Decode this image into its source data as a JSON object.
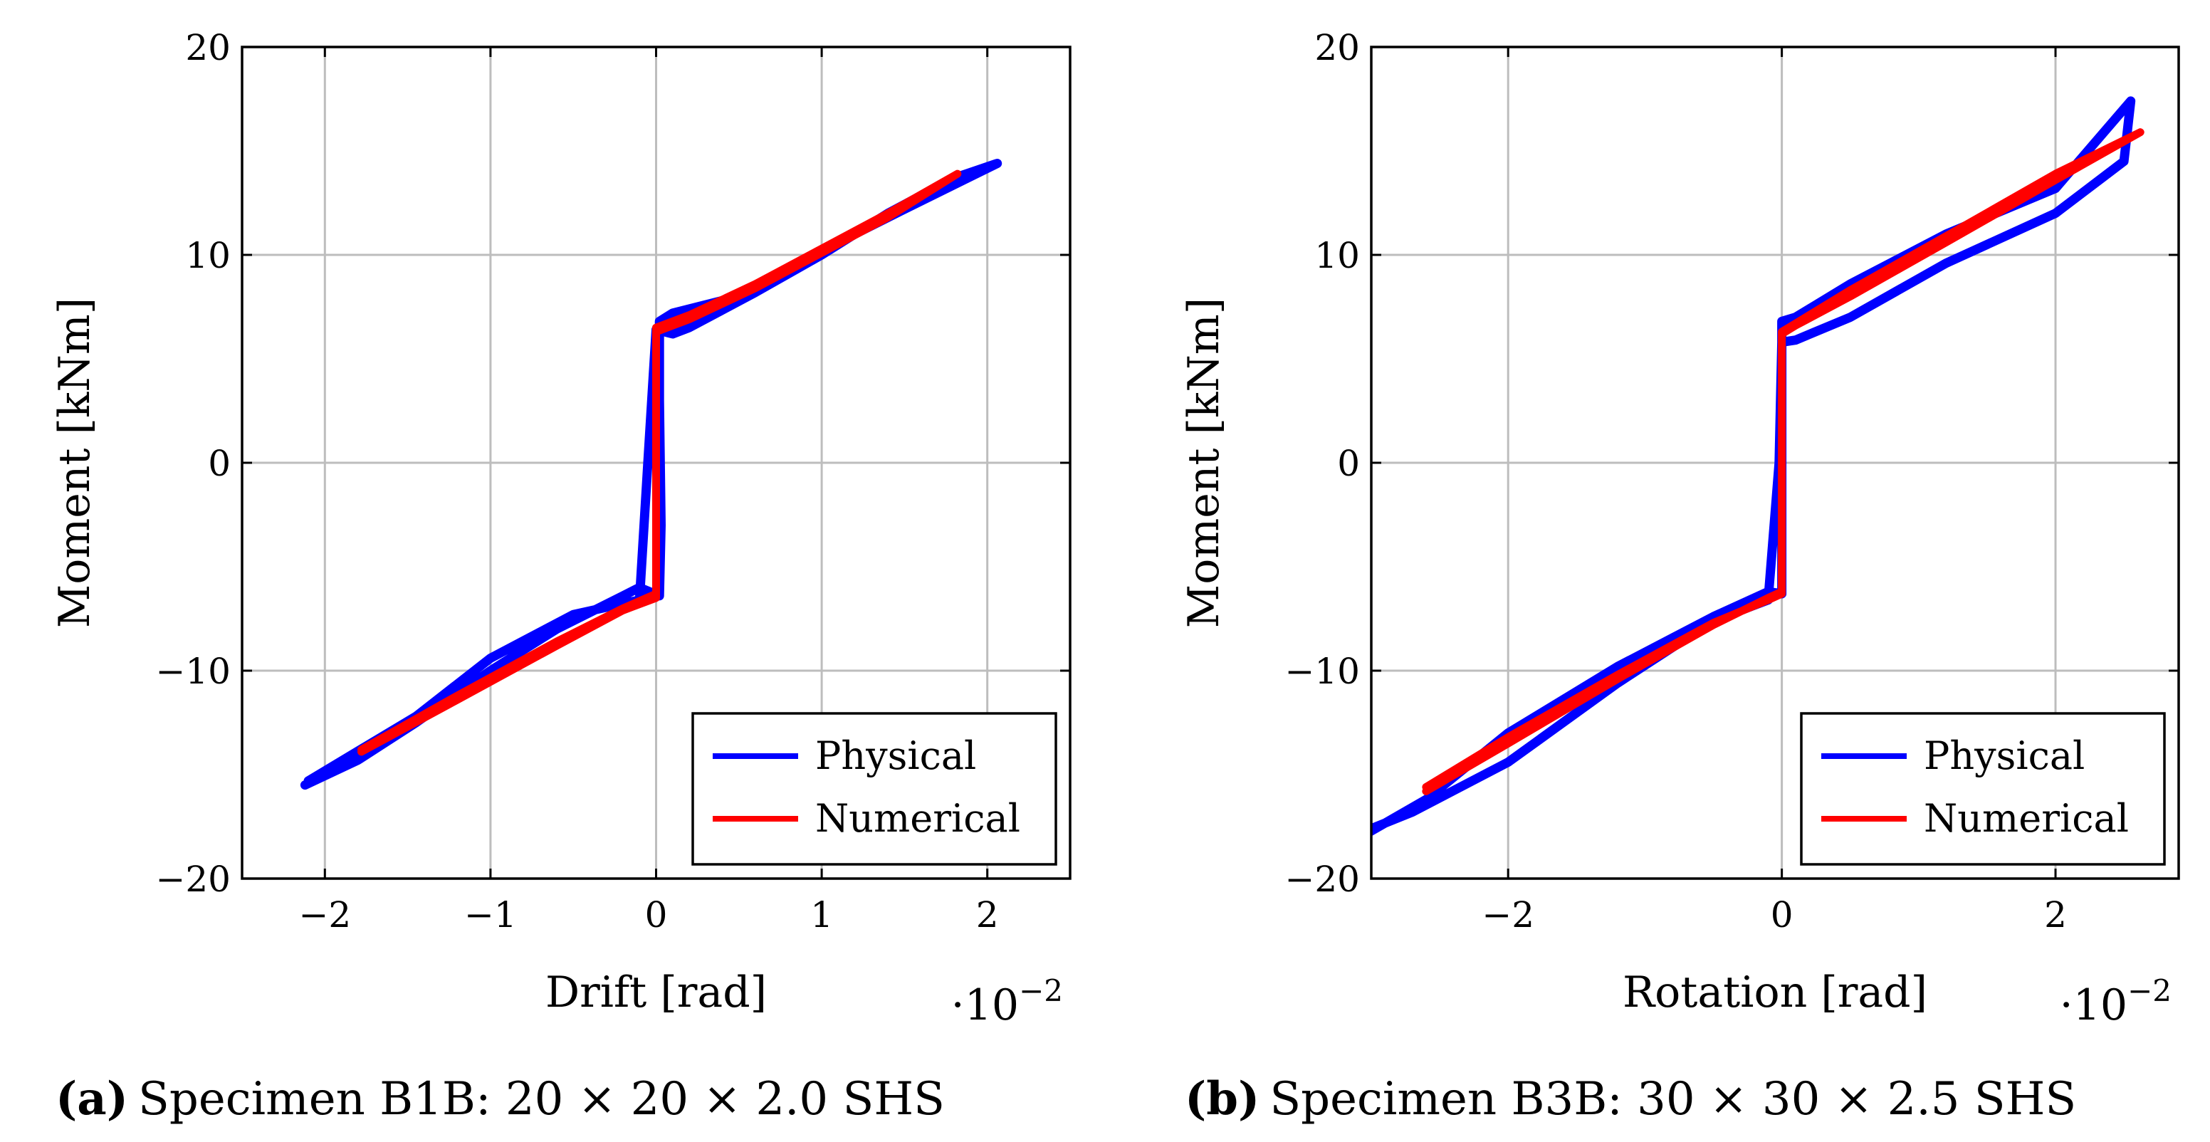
{
  "chart_data": [
    {
      "type": "line",
      "caption_prefix": "(a)",
      "caption": "Specimen B1B: 20 × 20 × 2.0 SHS",
      "xlabel": "Drift [rad]",
      "ylabel": "Moment [kNm]",
      "x_multiplier": "·10",
      "x_multiplier_exp": "−2",
      "xlim": [
        -2.5,
        2.5
      ],
      "ylim": [
        -20,
        20
      ],
      "xticks": [
        -2,
        -1,
        0,
        1,
        2
      ],
      "xtick_labels": [
        "−2",
        "−1",
        "0",
        "1",
        "2"
      ],
      "yticks": [
        -20,
        -10,
        0,
        10,
        20
      ],
      "ytick_labels": [
        "−20",
        "−10",
        "0",
        "10",
        "20"
      ],
      "grid": true,
      "legend": "bottom-right",
      "series": [
        {
          "name": "Physical",
          "color": "#0000ff",
          "x": [
            -2.12,
            -1.8,
            -1.45,
            -1.0,
            -0.6,
            -0.2,
            -0.1,
            0.02,
            0.03,
            0.02,
            0.02,
            0.1,
            0.5,
            1.0,
            1.5,
            2.06,
            1.8,
            1.4,
            1.0,
            0.6,
            0.2,
            0.1,
            0.0,
            -0.05,
            -0.1,
            -0.5,
            -1.0,
            -1.45,
            -2.1
          ],
          "y": [
            -15.5,
            -14.3,
            -12.5,
            -10.0,
            -8.0,
            -6.4,
            -6.0,
            -6.4,
            -3.0,
            3.0,
            6.8,
            7.2,
            8.0,
            10.2,
            12.2,
            14.4,
            13.7,
            12.0,
            10.0,
            8.2,
            6.5,
            6.2,
            6.4,
            0.0,
            -6.6,
            -7.3,
            -9.4,
            -12.2,
            -15.3
          ]
        },
        {
          "name": "Numerical",
          "color": "#ff0000",
          "x": [
            -1.78,
            -1.2,
            -0.6,
            -0.2,
            0.0,
            0.0,
            0.2,
            0.6,
            1.0,
            1.4,
            1.82,
            1.4,
            1.0,
            0.6,
            0.2,
            0.0,
            0.0,
            -0.2,
            -0.6,
            -1.2,
            -1.78
          ],
          "y": [
            -13.8,
            -11.2,
            -8.6,
            -7.0,
            -6.3,
            6.3,
            6.9,
            8.4,
            10.1,
            11.8,
            13.9,
            12.0,
            10.3,
            8.6,
            7.1,
            6.5,
            -6.5,
            -7.1,
            -8.8,
            -11.4,
            -13.9
          ]
        }
      ]
    },
    {
      "type": "line",
      "caption_prefix": "(b)",
      "caption": "Specimen B3B: 30 × 30 × 2.5 SHS",
      "xlabel": "Rotation [rad]",
      "ylabel": "Moment [kNm]",
      "x_multiplier": "·10",
      "x_multiplier_exp": "−2",
      "xlim": [
        -3,
        2.9
      ],
      "ylim": [
        -20,
        20
      ],
      "xticks": [
        -2,
        0,
        2
      ],
      "xtick_labels": [
        "−2",
        "0",
        "2"
      ],
      "yticks": [
        -20,
        -10,
        0,
        10,
        20
      ],
      "ytick_labels": [
        "−20",
        "−10",
        "0",
        "10",
        "20"
      ],
      "grid": true,
      "legend": "bottom-right",
      "series": [
        {
          "name": "Physical",
          "color": "#0000ff",
          "x": [
            -3.05,
            -2.6,
            -2.0,
            -1.2,
            -0.5,
            -0.1,
            0.0,
            0.0,
            0.0,
            0.0,
            0.1,
            0.5,
            1.2,
            2.0,
            2.55,
            2.5,
            2.0,
            1.2,
            0.5,
            0.1,
            0.0,
            -0.02,
            -0.1,
            -0.5,
            -1.2,
            -2.0,
            -2.7,
            -3.0
          ],
          "y": [
            -17.9,
            -16.2,
            -13.0,
            -9.8,
            -7.4,
            -6.2,
            -6.3,
            -3.0,
            3.0,
            6.8,
            7.0,
            8.6,
            11.0,
            13.2,
            17.4,
            14.5,
            12.0,
            9.6,
            7.0,
            5.9,
            5.8,
            0.0,
            -6.6,
            -7.6,
            -10.6,
            -14.4,
            -16.8,
            -17.6
          ]
        },
        {
          "name": "Numerical",
          "color": "#ff0000",
          "x": [
            -2.6,
            -2.0,
            -1.2,
            -0.5,
            -0.1,
            0.0,
            0.0,
            0.1,
            0.5,
            1.2,
            2.0,
            2.62,
            2.0,
            1.2,
            0.5,
            0.1,
            0.0,
            0.0,
            -0.1,
            -0.5,
            -1.2,
            -2.0,
            -2.6
          ],
          "y": [
            -15.8,
            -13.5,
            -10.4,
            -7.8,
            -6.5,
            -6.2,
            6.2,
            6.6,
            8.0,
            10.6,
            13.6,
            15.9,
            13.9,
            10.9,
            8.3,
            6.7,
            6.3,
            -6.3,
            -6.6,
            -7.7,
            -10.2,
            -13.2,
            -15.6
          ]
        }
      ]
    }
  ]
}
